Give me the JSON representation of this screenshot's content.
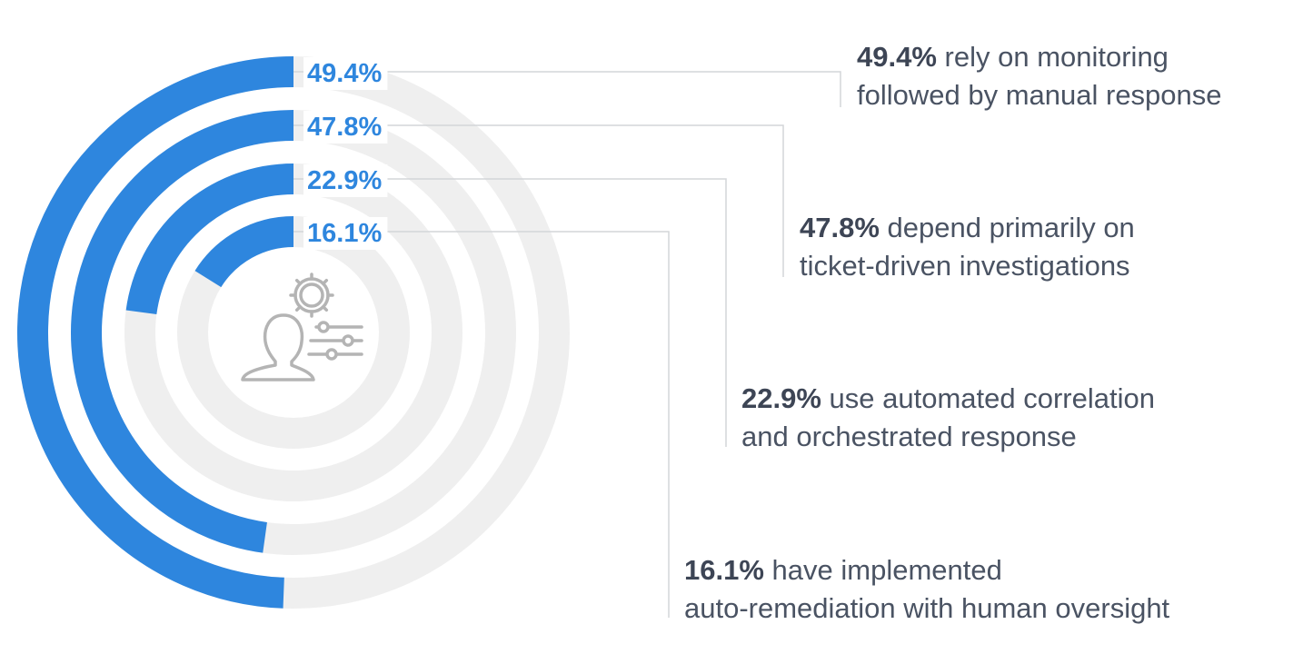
{
  "colors": {
    "accent": "#2e86de",
    "track": "#efefef",
    "connector": "#d3d5d9",
    "icon": "#b4b4b4",
    "caption_text": "#4a5363"
  },
  "icon": "user-gear-sliders-icon",
  "chart_data": {
    "type": "radial-bar",
    "max": 100,
    "series": [
      {
        "value": 49.4,
        "label": "49.4%",
        "caption_lead": "49.4%",
        "caption_line1": "rely on monitoring",
        "caption_line2": "followed by manual response"
      },
      {
        "value": 47.8,
        "label": "47.8%",
        "caption_lead": "47.8%",
        "caption_line1": "depend primarily on",
        "caption_line2": "ticket-driven investigations"
      },
      {
        "value": 22.9,
        "label": "22.9%",
        "caption_lead": "22.9%",
        "caption_line1": "use automated correlation",
        "caption_line2": "and orchestrated response"
      },
      {
        "value": 16.1,
        "label": "16.1%",
        "caption_lead": "16.1%",
        "caption_line1": "have implemented",
        "caption_line2": "auto-remediation with human oversight"
      }
    ]
  }
}
